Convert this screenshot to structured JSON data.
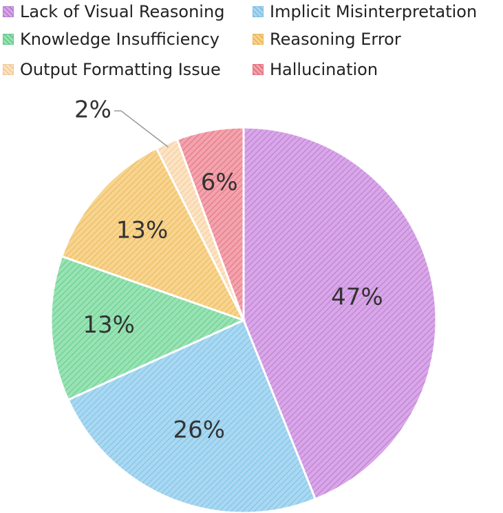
{
  "chart_data": {
    "type": "pie",
    "title": "",
    "legend_position": "top",
    "slices": [
      {
        "name": "Lack of Visual Reasoning",
        "value": 47,
        "label": "47%",
        "color": "#d9a6e8",
        "edge": "#b77cd0"
      },
      {
        "name": "Implicit Misinterpretation",
        "value": 26,
        "label": "26%",
        "color": "#a9d8f2",
        "edge": "#7fbfe3"
      },
      {
        "name": "Knowledge Insufficiency",
        "value": 13,
        "label": "13%",
        "color": "#98e3b3",
        "edge": "#66c98c"
      },
      {
        "name": "Reasoning Error",
        "value": 13,
        "label": "13%",
        "color": "#f8d48e",
        "edge": "#e8b85c"
      },
      {
        "name": "Output Formatting Issue",
        "value": 2,
        "label": "2%",
        "color": "#fce3c3",
        "edge": "#f2c996"
      },
      {
        "name": "Hallucination",
        "value": 6,
        "label": "6%",
        "color": "#f3a3ad",
        "edge": "#e0727f"
      }
    ]
  }
}
